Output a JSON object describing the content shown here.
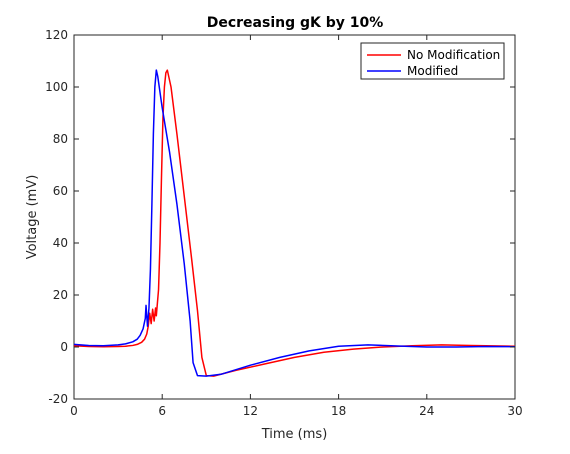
{
  "chart_data": {
    "type": "line",
    "title": "Decreasing gK by 10%",
    "xlabel": "Time (ms)",
    "ylabel": "Voltage (mV)",
    "xlim": [
      0,
      30
    ],
    "ylim": [
      -20,
      120
    ],
    "xticks": [
      0,
      6,
      12,
      18,
      24,
      30
    ],
    "yticks": [
      -20,
      0,
      20,
      40,
      60,
      80,
      100,
      120
    ],
    "grid": false,
    "legend_position": "top-right",
    "series": [
      {
        "name": "No Modification",
        "color": "#ff0000",
        "x": [
          0,
          1,
          2,
          3,
          3.5,
          4.0,
          4.3,
          4.6,
          4.8,
          4.95,
          5.05,
          5.15,
          5.25,
          5.35,
          5.45,
          5.55,
          5.6,
          5.75,
          5.85,
          5.95,
          6.05,
          6.15,
          6.25,
          6.35,
          6.6,
          7.0,
          7.5,
          8.0,
          8.4,
          8.7,
          9.0,
          9.5,
          11,
          13,
          15,
          17,
          19,
          21,
          23,
          25,
          27,
          30
        ],
        "y": [
          0.5,
          0.2,
          0.1,
          0.2,
          0.3,
          0.6,
          1.0,
          1.8,
          3.0,
          5.0,
          8.0,
          13.0,
          9.0,
          14.5,
          10.0,
          15.0,
          12.0,
          22.0,
          40.0,
          65.0,
          88.0,
          100.0,
          105.5,
          106.5,
          100.0,
          82.0,
          58.0,
          34.0,
          14.0,
          -4.0,
          -11.0,
          -11.2,
          -9.0,
          -6.5,
          -4.0,
          -2.0,
          -0.8,
          0.0,
          0.5,
          0.8,
          0.6,
          0.3
        ]
      },
      {
        "name": "Modified",
        "color": "#0000ff",
        "x": [
          0,
          1,
          2,
          3,
          3.5,
          4.0,
          4.3,
          4.5,
          4.7,
          4.85,
          4.9,
          4.95,
          5.0,
          5.1,
          5.2,
          5.3,
          5.4,
          5.5,
          5.6,
          5.7,
          6.0,
          6.5,
          7.0,
          7.5,
          7.9,
          8.1,
          8.4,
          9.0,
          10,
          12,
          14,
          16,
          18,
          20,
          22,
          24,
          26,
          28,
          30
        ],
        "y": [
          1.0,
          0.6,
          0.5,
          0.8,
          1.2,
          2.0,
          3.0,
          4.5,
          7.0,
          11.0,
          16.0,
          12.0,
          8.0,
          15.0,
          30.0,
          55.0,
          82.0,
          100.0,
          106.5,
          104.0,
          92.0,
          75.0,
          55.0,
          32.0,
          10.0,
          -6.0,
          -11.0,
          -11.2,
          -10.5,
          -7.0,
          -4.0,
          -1.5,
          0.3,
          0.8,
          0.4,
          0.0,
          0.0,
          0.2,
          0.1
        ]
      }
    ]
  }
}
